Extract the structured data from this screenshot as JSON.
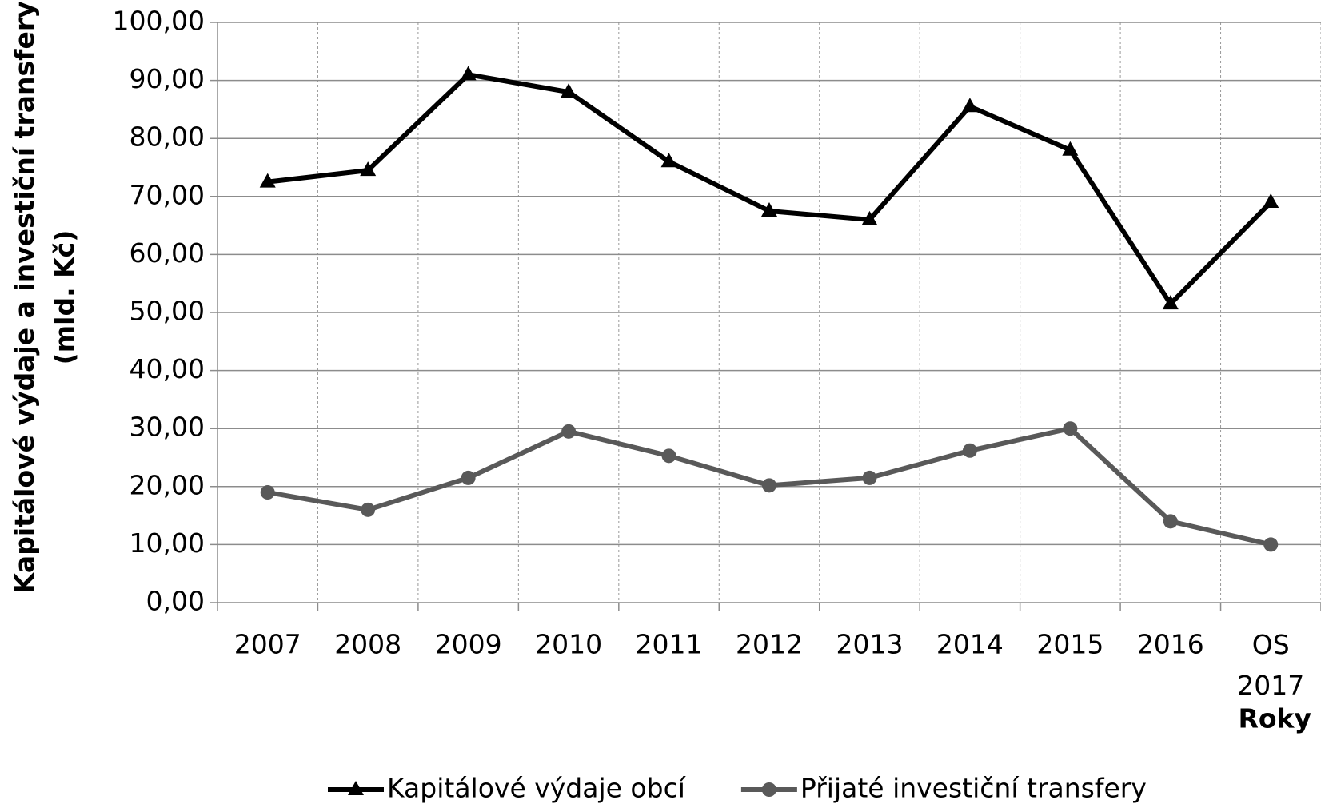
{
  "chart_data": {
    "type": "line",
    "y_label": "Kapitálové výdaje a investiční transfery (mld. Kč)",
    "x_label": "Roky",
    "categories": [
      "2007",
      "2008",
      "2009",
      "2010",
      "2011",
      "2012",
      "2013",
      "2014",
      "2015",
      "2016",
      "OS 2017"
    ],
    "series": [
      {
        "name": "Kapitálové výdaje obcí",
        "color": "#000000",
        "marker": "triangle",
        "values": [
          72.5,
          74.5,
          91,
          88,
          76,
          67.5,
          66,
          85.5,
          78,
          51.5,
          69
        ]
      },
      {
        "name": "Přijaté investiční transfery",
        "color": "#595959",
        "marker": "circle",
        "values": [
          19,
          16,
          21.5,
          29.5,
          25.3,
          20.2,
          21.5,
          26.2,
          30,
          14,
          10
        ]
      }
    ],
    "ylim": [
      0,
      100
    ],
    "yticks": [
      {
        "value": 0,
        "label": "0,00"
      },
      {
        "value": 10,
        "label": "10,00"
      },
      {
        "value": 20,
        "label": "20,00"
      },
      {
        "value": 30,
        "label": "30,00"
      },
      {
        "value": 40,
        "label": "40,00"
      },
      {
        "value": 50,
        "label": "50,00"
      },
      {
        "value": 60,
        "label": "60,00"
      },
      {
        "value": 70,
        "label": "70,00"
      },
      {
        "value": 80,
        "label": "80,00"
      },
      {
        "value": 90,
        "label": "90,00"
      },
      {
        "value": 100,
        "label": "100,00"
      }
    ],
    "grid": true,
    "legend": "bottom"
  }
}
